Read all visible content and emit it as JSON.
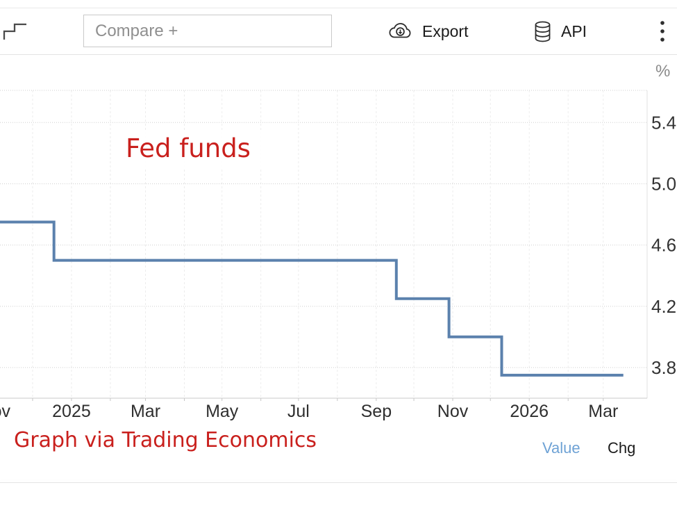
{
  "toolbar": {
    "chart_type_icon": "step-line-icon",
    "compare_placeholder": "Compare +",
    "export_label": "Export",
    "export_icon": "cloud-download-icon",
    "api_label": "API",
    "api_icon": "database-icon",
    "menu_icon": "kebab-menu-icon"
  },
  "chart": {
    "unit_label": "%",
    "annotation": "Fed funds",
    "credit": "Graph via Trading Economics",
    "value_toggle": "Value",
    "chg_toggle": "Chg",
    "colors": {
      "line": "#5b81ad",
      "annotation_red": "#c9201d",
      "value_blue": "#6ea2d5"
    }
  },
  "chart_data": {
    "type": "line",
    "step": "step-after",
    "title": "Fed funds",
    "xlabel": "",
    "ylabel": "%",
    "ylim": [
      3.6,
      5.61
    ],
    "y_ticks": [
      5.4,
      5.0,
      4.6,
      4.2,
      3.8
    ],
    "x_domain": [
      "2024-11-05",
      "2026-04-05"
    ],
    "x_ticks": [
      {
        "date": "2024-11-01",
        "label": "Nov"
      },
      {
        "date": "2025-01-01",
        "label": "2025"
      },
      {
        "date": "2025-03-01",
        "label": "Mar"
      },
      {
        "date": "2025-05-01",
        "label": "May"
      },
      {
        "date": "2025-07-01",
        "label": "Jul"
      },
      {
        "date": "2025-09-01",
        "label": "Sep"
      },
      {
        "date": "2025-11-01",
        "label": "Nov"
      },
      {
        "date": "2026-01-01",
        "label": "2026"
      },
      {
        "date": "2026-03-01",
        "label": "Mar"
      }
    ],
    "grid": {
      "horizontal": "dotted",
      "vertical": "monthly-dashed",
      "legend": "none"
    },
    "series": [
      {
        "name": "Fed Funds Rate",
        "points": [
          {
            "date": "2024-11-05",
            "value": 4.75
          },
          {
            "date": "2024-12-18",
            "value": 4.5
          },
          {
            "date": "2025-09-17",
            "value": 4.25
          },
          {
            "date": "2025-10-29",
            "value": 4.0
          },
          {
            "date": "2025-12-10",
            "value": 3.75
          },
          {
            "date": "2026-03-17",
            "value": 3.75
          }
        ]
      }
    ]
  }
}
